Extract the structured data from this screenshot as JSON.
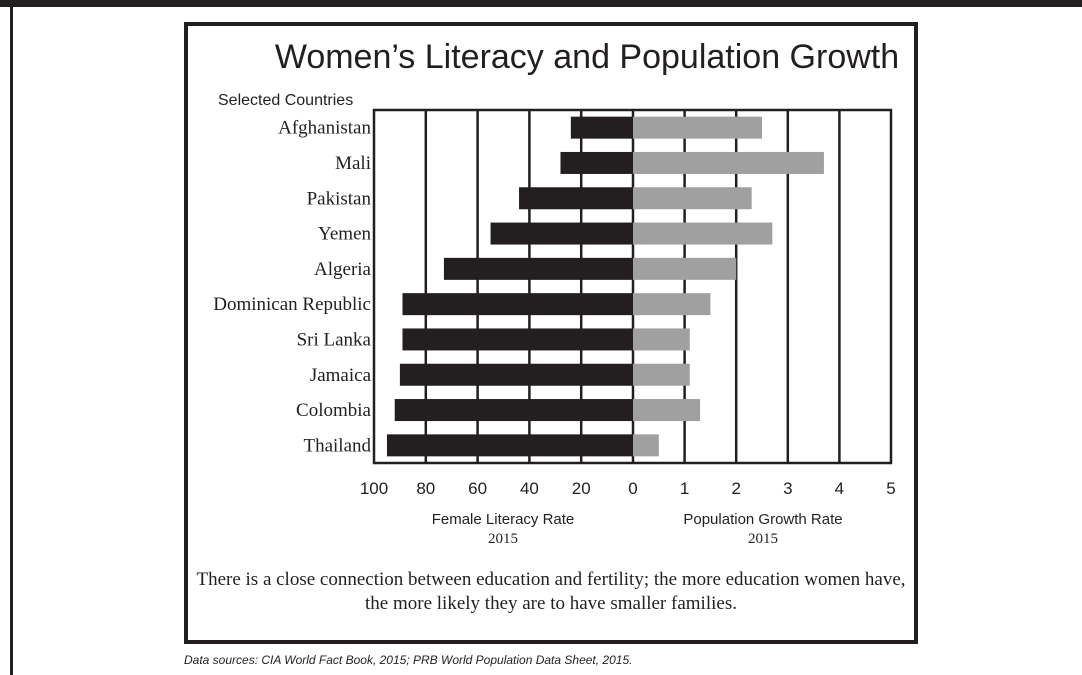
{
  "chart_data": {
    "type": "bar",
    "title": "Women’s Literacy and Population Growth",
    "subtitle": "Selected Countries",
    "categories": [
      "Afghanistan",
      "Mali",
      "Pakistan",
      "Yemen",
      "Algeria",
      "Dominican Republic",
      "Sri Lanka",
      "Jamaica",
      "Colombia",
      "Thailand"
    ],
    "series": [
      {
        "values": [
          24,
          28,
          44,
          55,
          73,
          89,
          89,
          90,
          92,
          95
        ],
        "color": "#231f20",
        "axis": "left",
        "xlim": [
          100,
          0
        ],
        "ticks": [
          "100",
          "80",
          "60",
          "40",
          "20",
          "0"
        ],
        "label": "Female Literacy Rate",
        "year": "2015"
      },
      {
        "values": [
          2.5,
          3.7,
          2.3,
          2.7,
          2.0,
          1.5,
          1.1,
          1.1,
          1.3,
          0.5
        ],
        "color": "#a0a0a0",
        "axis": "right",
        "xlim": [
          0,
          5
        ],
        "ticks": [
          "1",
          "2",
          "3",
          "4",
          "5"
        ],
        "label": "Population Growth Rate",
        "year": "2015"
      }
    ],
    "grid": true,
    "caption": "There is a close connection between education and fertility; the more education women have, the more likely they are to have smaller families."
  },
  "sources": "Data sources: CIA World Fact Book, 2015;  PRB World Population Data Sheet, 2015."
}
